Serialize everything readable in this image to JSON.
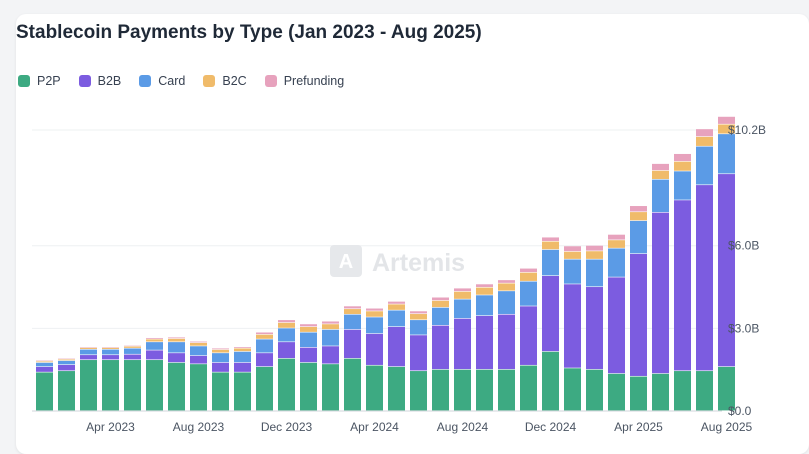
{
  "chart_data": {
    "type": "bar",
    "stacked": true,
    "title": "Stablecoin Payments by Type (Jan 2023 - Aug 2025)",
    "categories": [
      "Jan 2023",
      "Feb 2023",
      "Mar 2023",
      "Apr 2023",
      "May 2023",
      "Jun 2023",
      "Jul 2023",
      "Aug 2023",
      "Sep 2023",
      "Oct 2023",
      "Nov 2023",
      "Dec 2023",
      "Jan 2024",
      "Feb 2024",
      "Mar 2024",
      "Apr 2024",
      "May 2024",
      "Jun 2024",
      "Jul 2024",
      "Aug 2024",
      "Sep 2024",
      "Oct 2024",
      "Nov 2024",
      "Dec 2024",
      "Jan 2025",
      "Feb 2025",
      "Mar 2025",
      "Apr 2025",
      "May 2025",
      "Jun 2025",
      "Jul 2025",
      "Aug 2025"
    ],
    "x_tick_labels": [
      "Apr 2023",
      "Aug 2023",
      "Dec 2023",
      "Apr 2024",
      "Aug 2024",
      "Dec 2024",
      "Apr 2025",
      "Aug 2025"
    ],
    "y_tick_labels": [
      "$0.0",
      "$3.0B",
      "$6.0B",
      "$10.2B"
    ],
    "y_tick_values": [
      0,
      3.0,
      6.0,
      10.2
    ],
    "ylim": [
      0,
      10.2
    ],
    "unit": "$B",
    "legend_position": "top-left",
    "grid": true,
    "series": [
      {
        "name": "P2P",
        "color": "#3daa82",
        "values": [
          1.4,
          1.45,
          1.85,
          1.85,
          1.85,
          1.85,
          1.75,
          1.7,
          1.4,
          1.4,
          1.6,
          1.9,
          1.75,
          1.7,
          1.9,
          1.65,
          1.6,
          1.45,
          1.5,
          1.5,
          1.5,
          1.5,
          1.65,
          2.15,
          1.55,
          1.5,
          1.35,
          1.25,
          1.35,
          1.45,
          1.45,
          1.6
        ]
      },
      {
        "name": "B2B",
        "color": "#7c5ce0",
        "values": [
          0.2,
          0.22,
          0.18,
          0.18,
          0.2,
          0.35,
          0.35,
          0.3,
          0.35,
          0.35,
          0.5,
          0.6,
          0.55,
          0.65,
          1.05,
          1.15,
          1.45,
          1.3,
          1.6,
          1.85,
          1.95,
          2.0,
          2.15,
          2.75,
          3.05,
          3.0,
          3.5,
          4.45,
          5.85,
          6.2,
          6.75,
          7.0
        ]
      },
      {
        "name": "Card",
        "color": "#5b9be6",
        "values": [
          0.15,
          0.15,
          0.2,
          0.2,
          0.22,
          0.3,
          0.4,
          0.35,
          0.35,
          0.4,
          0.5,
          0.5,
          0.55,
          0.6,
          0.55,
          0.6,
          0.6,
          0.55,
          0.65,
          0.7,
          0.75,
          0.85,
          0.9,
          0.95,
          0.9,
          1.0,
          1.05,
          1.2,
          1.2,
          1.05,
          1.4,
          1.45
        ]
      },
      {
        "name": "B2C",
        "color": "#f0bb6a",
        "values": [
          0.05,
          0.05,
          0.06,
          0.06,
          0.07,
          0.1,
          0.12,
          0.12,
          0.12,
          0.12,
          0.17,
          0.2,
          0.2,
          0.2,
          0.2,
          0.22,
          0.22,
          0.22,
          0.25,
          0.28,
          0.28,
          0.28,
          0.32,
          0.3,
          0.28,
          0.3,
          0.3,
          0.32,
          0.32,
          0.35,
          0.35,
          0.35
        ]
      },
      {
        "name": "Prefunding",
        "color": "#e7a2bd",
        "values": [
          0.03,
          0.03,
          0.03,
          0.03,
          0.03,
          0.05,
          0.05,
          0.05,
          0.05,
          0.05,
          0.08,
          0.1,
          0.1,
          0.1,
          0.1,
          0.1,
          0.1,
          0.1,
          0.12,
          0.12,
          0.12,
          0.12,
          0.15,
          0.15,
          0.2,
          0.2,
          0.2,
          0.22,
          0.25,
          0.28,
          0.28,
          0.28
        ]
      }
    ]
  },
  "watermark": {
    "text": "Artemis",
    "icon": "artemis-logo"
  }
}
